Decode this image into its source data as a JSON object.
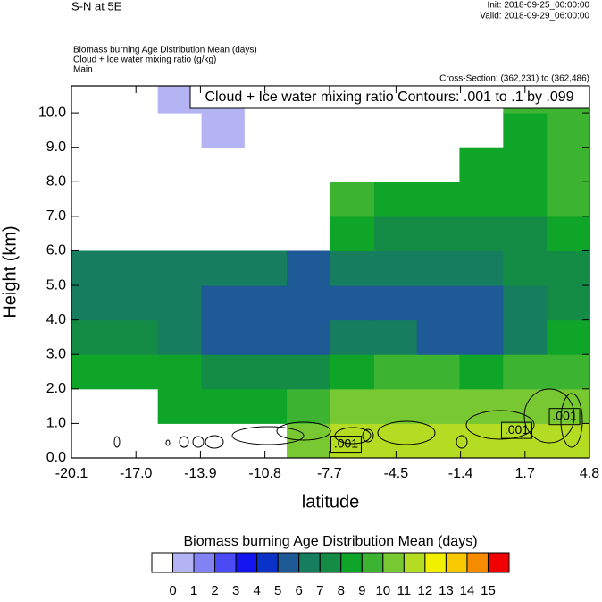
{
  "chart_data": {
    "type": "contour",
    "title": "S-N at 5E",
    "init": "Init: 2018-09-25_00:00:00",
    "valid": "Valid: 2018-09-29_06:00:00",
    "field_lines": [
      "Biomass burning Age Distribution Mean   (days)",
      "Cloud + Ice water mixing ratio   (g/kg)",
      "Main"
    ],
    "cross_section": "Cross-Section: (362,231) to (362,486)",
    "contour_info": "Cloud + Ice water mixing ratio Contours: .001 to .1 by .099",
    "x_label": "latitude",
    "y_label": "Height (km)",
    "xlim": [
      -20.1,
      4.8
    ],
    "ylim": [
      0,
      10.78
    ],
    "xticks": [
      -20.1,
      {
        "value": -17.0,
        "label": "-17.0"
      },
      -13.9,
      -10.8,
      -7.7,
      -4.5,
      -1.4,
      1.7,
      4.8
    ],
    "yticks": [
      {
        "value": 0,
        "label": "0.0"
      },
      {
        "value": 1,
        "label": "1.0"
      },
      {
        "value": 2,
        "label": "2.0"
      },
      {
        "value": 3,
        "label": "3.0"
      },
      {
        "value": 4,
        "label": "4.0"
      },
      {
        "value": 5,
        "label": "5.0"
      },
      {
        "value": 6,
        "label": "6.0"
      },
      {
        "value": 7,
        "label": "7.0"
      },
      {
        "value": 8,
        "label": "8.0"
      },
      {
        "value": 9,
        "label": "9.0"
      },
      {
        "value": 10,
        "label": "10.0"
      }
    ],
    "x": [
      -19.1,
      -17.0,
      -14.9,
      -12.8,
      -10.8,
      -8.7,
      -6.6,
      -4.5,
      -2.5,
      -0.4,
      1.7,
      3.8
    ],
    "y": [
      0.5,
      1.5,
      2.5,
      3.5,
      4.5,
      5.5,
      6.5,
      7.5,
      8.5,
      9.5,
      10.5
    ],
    "z": [
      [
        null,
        null,
        null,
        null,
        null,
        10.5,
        11.5,
        11.5,
        11.5,
        11.5,
        11.5,
        11.5
      ],
      [
        null,
        null,
        8.5,
        8.5,
        8.5,
        9.5,
        10.5,
        10.5,
        10.5,
        10.5,
        10.5,
        10.5
      ],
      [
        8.5,
        8.5,
        8.5,
        7.5,
        7.5,
        7.5,
        8.5,
        9.5,
        9.5,
        8.5,
        9.5,
        9.5
      ],
      [
        7.5,
        7.5,
        6.5,
        5.5,
        5.5,
        5.5,
        6.5,
        6.5,
        5.5,
        5.5,
        6.5,
        8.5
      ],
      [
        6.5,
        6.5,
        6.5,
        5.5,
        5.5,
        5.5,
        5.5,
        5.5,
        5.5,
        5.5,
        6.5,
        7.5
      ],
      [
        6.5,
        6.5,
        6.5,
        6.5,
        6.5,
        5.5,
        6.5,
        6.5,
        6.5,
        6.5,
        7.5,
        7.5
      ],
      [
        null,
        null,
        null,
        null,
        null,
        null,
        8.5,
        7.5,
        7.5,
        7.5,
        7.5,
        8.5
      ],
      [
        null,
        null,
        null,
        null,
        null,
        null,
        9.5,
        8.5,
        8.5,
        8.5,
        8.5,
        9.5
      ],
      [
        null,
        null,
        null,
        null,
        null,
        null,
        null,
        null,
        null,
        8.5,
        8.5,
        9.5
      ],
      [
        null,
        null,
        null,
        0.5,
        null,
        null,
        null,
        null,
        null,
        null,
        8.5,
        9.5
      ],
      [
        null,
        null,
        0.5,
        0.5,
        null,
        null,
        null,
        null,
        null,
        null,
        9.5,
        9.5
      ]
    ],
    "contour_labels": [
      {
        "label": ".001",
        "x": -6.9,
        "y": 0.4
      },
      {
        "label": ".001",
        "x": 1.3,
        "y": 0.8
      },
      {
        "label": ".001",
        "x": 3.6,
        "y": 1.2
      }
    ],
    "colorbar_title": "Biomass burning Age Distribution Mean  (days)",
    "levels": [
      0,
      1,
      2,
      3,
      4,
      5,
      6,
      7,
      8,
      9,
      10,
      11,
      12,
      13,
      14,
      15
    ],
    "colors": [
      "#ffffff",
      "#b4b4f5",
      "#8282f5",
      "#4b4bf5",
      "#1414f0",
      "#0a32c8",
      "#1e5a96",
      "#167d5f",
      "#148c46",
      "#0fa528",
      "#3cb432",
      "#78c832",
      "#b4dc23",
      "#f0f000",
      "#f8c800",
      "#f88c00",
      "#f00000"
    ]
  }
}
